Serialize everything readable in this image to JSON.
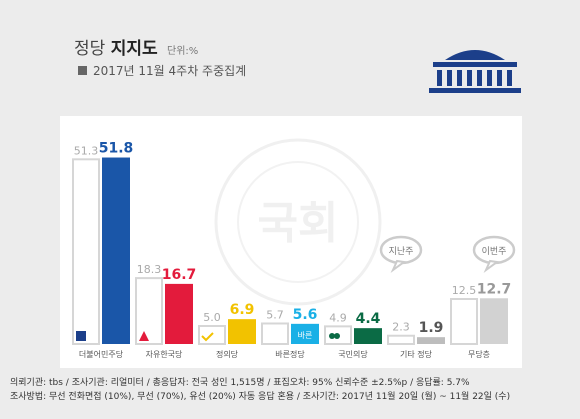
{
  "header": {
    "title_prefix": "정당",
    "title_main": "지지도",
    "unit": "단위:%",
    "subtitle": "2017년 11월 4주차 주중집계"
  },
  "colors": {
    "prev_fill": "#ffffff",
    "prev_stroke": "#d6d6d6",
    "prev_label": "#aaaaaa",
    "accent_navy": "#1c3f8a"
  },
  "chart_data": {
    "type": "bar",
    "categories": [
      "더불어민주당",
      "자유한국당",
      "정의당",
      "바른정당",
      "국민의당",
      "기타 정당",
      "무당층"
    ],
    "series": [
      {
        "values": [
          51.3,
          18.3,
          5.0,
          5.7,
          4.9,
          2.3,
          12.5
        ]
      },
      {
        "values": [
          51.8,
          16.7,
          6.9,
          5.6,
          4.4,
          1.9,
          12.7
        ]
      }
    ],
    "value_labels_prev": [
      "51.3",
      "18.3",
      "5.0",
      "5.7",
      "4.9",
      "2.3",
      "12.5"
    ],
    "value_labels_curr": [
      "51.8",
      "16.7",
      "6.9",
      "5.6",
      "4.4",
      "1.9",
      "12.7"
    ],
    "colors": [
      "#1a56a8",
      "#e31b3c",
      "#f2c200",
      "#1ab0e6",
      "#0b6b45",
      "#bdbdbd",
      "#d2d2d2"
    ],
    "label_colors": [
      "#1a56a8",
      "#e31b3c",
      "#f2c200",
      "#1ab0e6",
      "#0b6b45",
      "#555555",
      "#999999"
    ],
    "icons": [
      "democratic-party-logo-icon",
      "liberty-korea-party-logo-icon",
      "justice-party-logo-icon",
      "bareun-party-logo-icon",
      "peoples-party-logo-icon",
      null,
      null
    ],
    "icon_texts": [
      "",
      "",
      "",
      "바른",
      "",
      "",
      ""
    ],
    "callouts": [
      {
        "category": "기타 정당",
        "text": "지난주"
      },
      {
        "category": "무당층",
        "text": "이번주"
      }
    ],
    "ylim": [
      0,
      55
    ],
    "grid": false,
    "watermark": "국회"
  },
  "footer": {
    "line1": "의뢰기관: tbs / 조사기관: 리얼미터 / 총응답자: 전국 성인 1,515명 / 표집오차: 95% 신뢰수준 ±2.5%p / 응답률: 5.7%",
    "line2": "조사방법: 무선 전화면접 (10%), 무선 (70%), 유선 (20%) 자동 응답 혼용 / 조사기간: 2017년 11월 20일 (월) ~ 11월 22일 (수)"
  }
}
